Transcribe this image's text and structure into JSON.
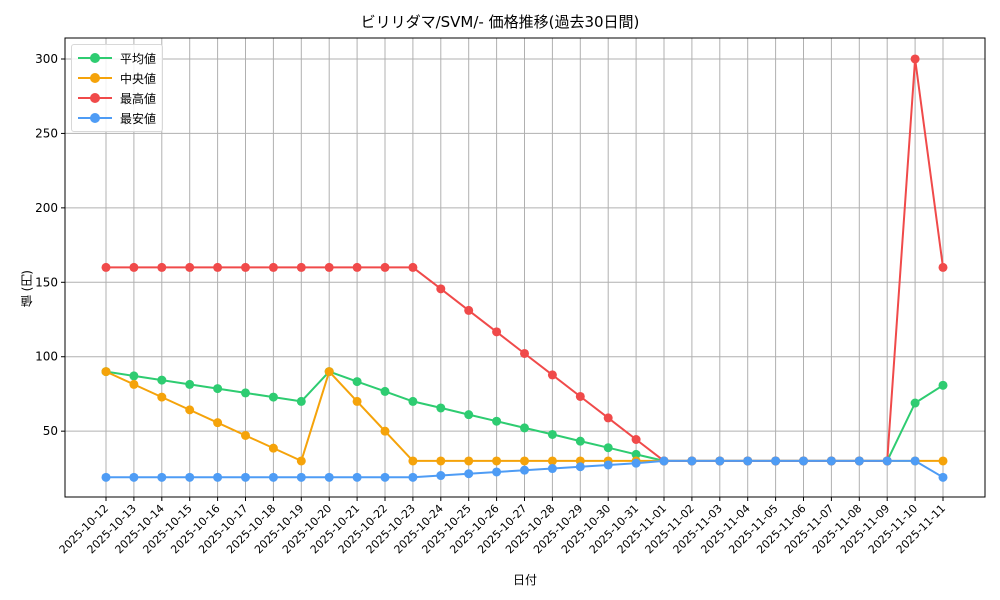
{
  "chart_data": {
    "type": "line",
    "title": "ビリリダマ/SVM/- 価格推移(過去30日間)",
    "xlabel": "日付",
    "ylabel": "値 (円)",
    "ylim": [
      11,
      313
    ],
    "yticks": [
      50,
      100,
      150,
      200,
      250,
      300
    ],
    "grid": true,
    "legend_position": "upper left",
    "categories": [
      "2025-10-12",
      "2025-10-13",
      "2025-10-14",
      "2025-10-15",
      "2025-10-16",
      "2025-10-17",
      "2025-10-18",
      "2025-10-19",
      "2025-10-20",
      "2025-10-21",
      "2025-10-22",
      "2025-10-23",
      "2025-10-24",
      "2025-10-25",
      "2025-10-26",
      "2025-10-27",
      "2025-10-28",
      "2025-10-29",
      "2025-10-30",
      "2025-10-31",
      "2025-11-01",
      "2025-11-02",
      "2025-11-03",
      "2025-11-04",
      "2025-11-05",
      "2025-11-06",
      "2025-11-07",
      "2025-11-08",
      "2025-11-09",
      "2025-11-10",
      "2025-11-11"
    ],
    "series": [
      {
        "name": "平均値",
        "color": "#2ecc71",
        "values": [
          90,
          87.1,
          84.3,
          81.4,
          78.6,
          75.7,
          72.9,
          70,
          90,
          83.3,
          76.7,
          70,
          65.6,
          61.1,
          56.7,
          52.2,
          47.8,
          43.3,
          38.9,
          34.4,
          30,
          30,
          30,
          30,
          30,
          30,
          30,
          30,
          30,
          68.9,
          80.8
        ]
      },
      {
        "name": "中央値",
        "color": "#f5a30a",
        "values": [
          90,
          81.4,
          72.9,
          64.3,
          55.7,
          47.1,
          38.6,
          30,
          90,
          70,
          50,
          30,
          30,
          30,
          30,
          30,
          30,
          30,
          30,
          30,
          30,
          30,
          30,
          30,
          30,
          30,
          30,
          30,
          30,
          30,
          30
        ]
      },
      {
        "name": "最高値",
        "color": "#f04a4a",
        "values": [
          160,
          160,
          160,
          160,
          160,
          160,
          160,
          160,
          160,
          160,
          160,
          160,
          145.6,
          131.1,
          116.7,
          102.2,
          87.8,
          73.3,
          58.9,
          44.4,
          30,
          30,
          30,
          30,
          30,
          30,
          30,
          30,
          30,
          300,
          160
        ]
      },
      {
        "name": "最安値",
        "color": "#4e9cf5",
        "values": [
          19,
          19,
          19,
          19,
          19,
          19,
          19,
          19,
          19,
          19,
          19,
          19,
          20.2,
          21.4,
          22.6,
          23.8,
          24.9,
          26.1,
          27.3,
          28.5,
          30,
          30,
          30,
          30,
          30,
          30,
          30,
          30,
          30,
          30,
          19
        ]
      }
    ]
  }
}
